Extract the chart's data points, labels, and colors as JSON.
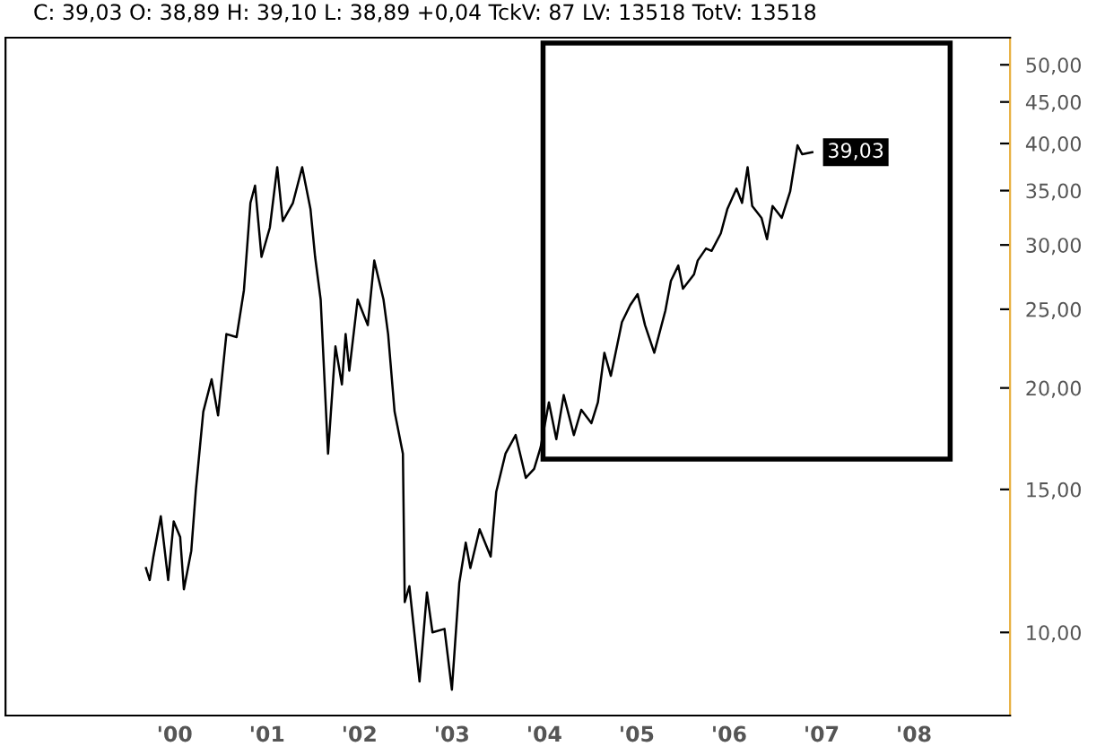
{
  "chart_data": {
    "type": "line",
    "title": "C: 39,03 O: 38,89 H: 39,10 L: 38,89 +0,04 TckV: 87 LV: 13518 TotV: 13518",
    "x": [
      1999.69,
      1999.73,
      1999.77,
      1999.85,
      1999.93,
      1999.99,
      2000.06,
      2000.1,
      2000.18,
      2000.23,
      2000.31,
      2000.4,
      2000.47,
      2000.56,
      2000.67,
      2000.75,
      2000.82,
      2000.87,
      2000.94,
      2001.03,
      2001.11,
      2001.17,
      2001.28,
      2001.38,
      2001.47,
      2001.52,
      2001.58,
      2001.66,
      2001.74,
      2001.81,
      2001.85,
      2001.89,
      2001.98,
      2002.09,
      2002.16,
      2002.26,
      2002.31,
      2002.38,
      2002.47,
      2002.49,
      2002.54,
      2002.65,
      2002.73,
      2002.79,
      2002.92,
      2003.0,
      2003.08,
      2003.15,
      2003.2,
      2003.3,
      2003.42,
      2003.48,
      2003.58,
      2003.69,
      2003.8,
      2003.89,
      2003.96,
      2004.05,
      2004.13,
      2004.21,
      2004.32,
      2004.4,
      2004.51,
      2004.58,
      2004.65,
      2004.72,
      2004.84,
      2004.93,
      2005.01,
      2005.09,
      2005.19,
      2005.31,
      2005.37,
      2005.45,
      2005.5,
      2005.62,
      2005.66,
      2005.75,
      2005.81,
      2005.91,
      2005.98,
      2006.08,
      2006.14,
      2006.2,
      2006.25,
      2006.35,
      2006.41,
      2006.47,
      2006.57,
      2006.66,
      2006.74,
      2006.79,
      2006.9
    ],
    "series": [
      {
        "color": "#000000",
        "values": [
          12.0,
          11.6,
          12.4,
          13.9,
          11.6,
          13.7,
          13.1,
          11.3,
          12.6,
          15.0,
          18.7,
          20.5,
          18.5,
          23.3,
          23.1,
          26.4,
          33.8,
          35.5,
          29.0,
          31.5,
          37.4,
          32.1,
          33.8,
          37.4,
          33.2,
          29.0,
          25.7,
          16.6,
          22.5,
          20.2,
          23.3,
          21.0,
          25.7,
          23.9,
          28.7,
          25.7,
          23.3,
          18.7,
          16.6,
          10.9,
          11.4,
          8.7,
          11.2,
          10.0,
          10.1,
          8.5,
          11.5,
          12.9,
          12.0,
          13.4,
          12.4,
          14.9,
          16.6,
          17.5,
          15.5,
          15.9,
          16.9,
          19.2,
          17.3,
          19.6,
          17.5,
          18.8,
          18.1,
          19.2,
          22.1,
          20.7,
          24.1,
          25.3,
          26.1,
          23.9,
          22.1,
          24.9,
          27.1,
          28.3,
          26.5,
          27.6,
          28.7,
          29.7,
          29.5,
          31.0,
          33.2,
          35.2,
          33.8,
          37.4,
          33.5,
          32.4,
          30.5,
          33.5,
          32.4,
          34.9,
          39.8,
          38.8,
          39.03
        ]
      }
    ],
    "log": true,
    "ylim": [
      7.9,
      54
    ],
    "yticks": [
      {
        "value": 10,
        "label": "10,00"
      },
      {
        "value": 15,
        "label": "15,00"
      },
      {
        "value": 20,
        "label": "20,00"
      },
      {
        "value": 25,
        "label": "25,00"
      },
      {
        "value": 30,
        "label": "30,00"
      },
      {
        "value": 35,
        "label": "35,00"
      },
      {
        "value": 40,
        "label": "40,00"
      },
      {
        "value": 45,
        "label": "45,00"
      },
      {
        "value": 50,
        "label": "50,00"
      }
    ],
    "xlim": [
      1998.17,
      2009.04
    ],
    "xticks": [
      {
        "value": 2000,
        "label": "'00"
      },
      {
        "value": 2001,
        "label": "'01"
      },
      {
        "value": 2002,
        "label": "'02"
      },
      {
        "value": 2003,
        "label": "'03"
      },
      {
        "value": 2004,
        "label": "'04"
      },
      {
        "value": 2005,
        "label": "'05"
      },
      {
        "value": 2006,
        "label": "'06"
      },
      {
        "value": 2007,
        "label": "'07"
      },
      {
        "value": 2008,
        "label": "'08"
      }
    ],
    "annotations": [
      {
        "text": "39,03",
        "x": 2006.9,
        "y": 39.03
      }
    ],
    "grid": false,
    "legend": false
  }
}
